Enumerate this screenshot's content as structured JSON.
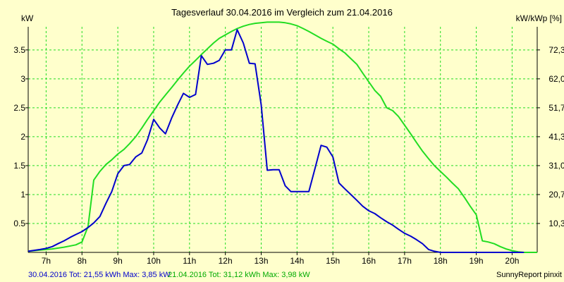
{
  "chart_data": {
    "type": "line",
    "title": "Tagesverlauf 30.04.2016 im Vergleich zum 21.04.2016",
    "ylabel_left": "kW",
    "ylabel_right": "kW/kWp [%]",
    "xlim": [
      6.5,
      20.7
    ],
    "ylim": [
      0,
      3.9
    ],
    "x_ticks": [
      7,
      8,
      9,
      10,
      11,
      12,
      13,
      14,
      15,
      16,
      17,
      18,
      19,
      20
    ],
    "x_tick_labels": [
      "7h",
      "8h",
      "9h",
      "10h",
      "11h",
      "12h",
      "13h",
      "14h",
      "15h",
      "16h",
      "17h",
      "18h",
      "19h",
      "20h"
    ],
    "y_ticks": [
      0.5,
      1,
      1.5,
      2,
      2.5,
      3,
      3.5
    ],
    "y_tick_labels": [
      "0.5",
      "1",
      "1.5",
      "2",
      "2.5",
      "3",
      "3.5"
    ],
    "y_right_ticks": [
      0.5,
      1,
      1.5,
      2,
      2.5,
      3,
      3.5
    ],
    "y_right_tick_labels": [
      "10,3",
      "20,7",
      "31,0",
      "41,3",
      "51,7",
      "62,0",
      "72,3"
    ],
    "grid": true,
    "series": [
      {
        "name": "30.04.2016",
        "color": "#0000cc",
        "x": [
          6.5,
          6.83,
          7.0,
          7.17,
          7.33,
          7.5,
          7.67,
          7.83,
          8.0,
          8.17,
          8.33,
          8.5,
          8.67,
          8.83,
          9.0,
          9.17,
          9.33,
          9.5,
          9.67,
          9.83,
          10.0,
          10.17,
          10.33,
          10.5,
          10.67,
          10.83,
          11.0,
          11.17,
          11.33,
          11.5,
          11.67,
          11.83,
          12.0,
          12.17,
          12.33,
          12.5,
          12.67,
          12.83,
          13.0,
          13.17,
          13.33,
          13.5,
          13.67,
          13.83,
          14.0,
          14.17,
          14.33,
          14.5,
          14.67,
          14.83,
          15.0,
          15.17,
          15.33,
          15.5,
          15.67,
          15.83,
          16.0,
          16.17,
          16.33,
          16.5,
          16.67,
          16.83,
          17.0,
          17.17,
          17.33,
          17.5,
          17.67,
          17.83,
          18.0,
          18.17,
          18.33,
          18.5,
          18.67,
          18.83,
          19.0,
          19.17,
          19.33,
          19.5,
          19.67,
          19.83,
          20.0,
          20.17,
          20.33
        ],
        "values": [
          0.02,
          0.05,
          0.07,
          0.1,
          0.15,
          0.2,
          0.26,
          0.31,
          0.36,
          0.43,
          0.51,
          0.62,
          0.85,
          1.05,
          1.36,
          1.5,
          1.52,
          1.65,
          1.72,
          1.95,
          2.3,
          2.15,
          2.05,
          2.32,
          2.55,
          2.75,
          2.68,
          2.73,
          3.4,
          3.25,
          3.27,
          3.32,
          3.5,
          3.5,
          3.85,
          3.62,
          3.27,
          3.26,
          2.55,
          1.42,
          1.43,
          1.43,
          1.15,
          1.05,
          1.05,
          1.05,
          1.05,
          1.45,
          1.85,
          1.82,
          1.65,
          1.2,
          1.1,
          1.0,
          0.9,
          0.8,
          0.72,
          0.67,
          0.6,
          0.53,
          0.47,
          0.4,
          0.33,
          0.28,
          0.22,
          0.15,
          0.05,
          0.02,
          0.0,
          0.0,
          0.0,
          0.0,
          0.0,
          0.0,
          0.0,
          0.0,
          0.0,
          0.0,
          0.0,
          0.0,
          0.0,
          0.0,
          0.0
        ]
      },
      {
        "name": "21.04.2016",
        "color": "#22dd22",
        "x": [
          6.5,
          6.83,
          7.17,
          7.5,
          7.83,
          8.0,
          8.17,
          8.33,
          8.5,
          8.67,
          8.83,
          9.0,
          9.17,
          9.33,
          9.5,
          9.67,
          9.83,
          10.0,
          10.17,
          10.33,
          10.5,
          10.67,
          10.83,
          11.0,
          11.17,
          11.33,
          11.5,
          11.67,
          11.83,
          12.0,
          12.17,
          12.33,
          12.5,
          12.67,
          12.83,
          13.0,
          13.17,
          13.33,
          13.5,
          13.67,
          13.83,
          14.0,
          14.17,
          14.33,
          14.5,
          14.67,
          14.83,
          15.0,
          15.17,
          15.33,
          15.5,
          15.67,
          15.83,
          16.0,
          16.17,
          16.33,
          16.5,
          16.67,
          16.83,
          17.0,
          17.17,
          17.33,
          17.5,
          17.67,
          17.83,
          18.0,
          18.17,
          18.33,
          18.5,
          18.67,
          18.83,
          19.0,
          19.17,
          19.33,
          19.5,
          19.67,
          19.83,
          20.0,
          20.17,
          20.33,
          20.5,
          20.7
        ],
        "values": [
          0.02,
          0.04,
          0.06,
          0.09,
          0.13,
          0.18,
          0.45,
          1.25,
          1.4,
          1.52,
          1.6,
          1.7,
          1.78,
          1.88,
          2.0,
          2.15,
          2.3,
          2.45,
          2.6,
          2.72,
          2.85,
          2.98,
          3.1,
          3.22,
          3.32,
          3.42,
          3.52,
          3.62,
          3.7,
          3.76,
          3.82,
          3.87,
          3.91,
          3.94,
          3.96,
          3.97,
          3.98,
          3.98,
          3.98,
          3.97,
          3.95,
          3.92,
          3.87,
          3.82,
          3.76,
          3.7,
          3.65,
          3.6,
          3.52,
          3.45,
          3.35,
          3.25,
          3.1,
          2.95,
          2.8,
          2.7,
          2.5,
          2.45,
          2.35,
          2.2,
          2.05,
          1.9,
          1.75,
          1.62,
          1.5,
          1.4,
          1.3,
          1.2,
          1.1,
          0.95,
          0.8,
          0.65,
          0.2,
          0.18,
          0.15,
          0.1,
          0.06,
          0.03,
          0.01,
          0.0,
          0.0,
          0.0
        ]
      }
    ],
    "footer": {
      "series1_text": "30.04.2016 Tot: 21,55 kWh Max: 3,85 kW",
      "series2_text": "21.04.2016 Tot: 31,12 kWh Max: 3,98 kW",
      "credit": "SunnyReport pinxit"
    },
    "colors": {
      "background": "#ffffcc",
      "grid": "#22dd22",
      "axis": "#000000"
    }
  }
}
